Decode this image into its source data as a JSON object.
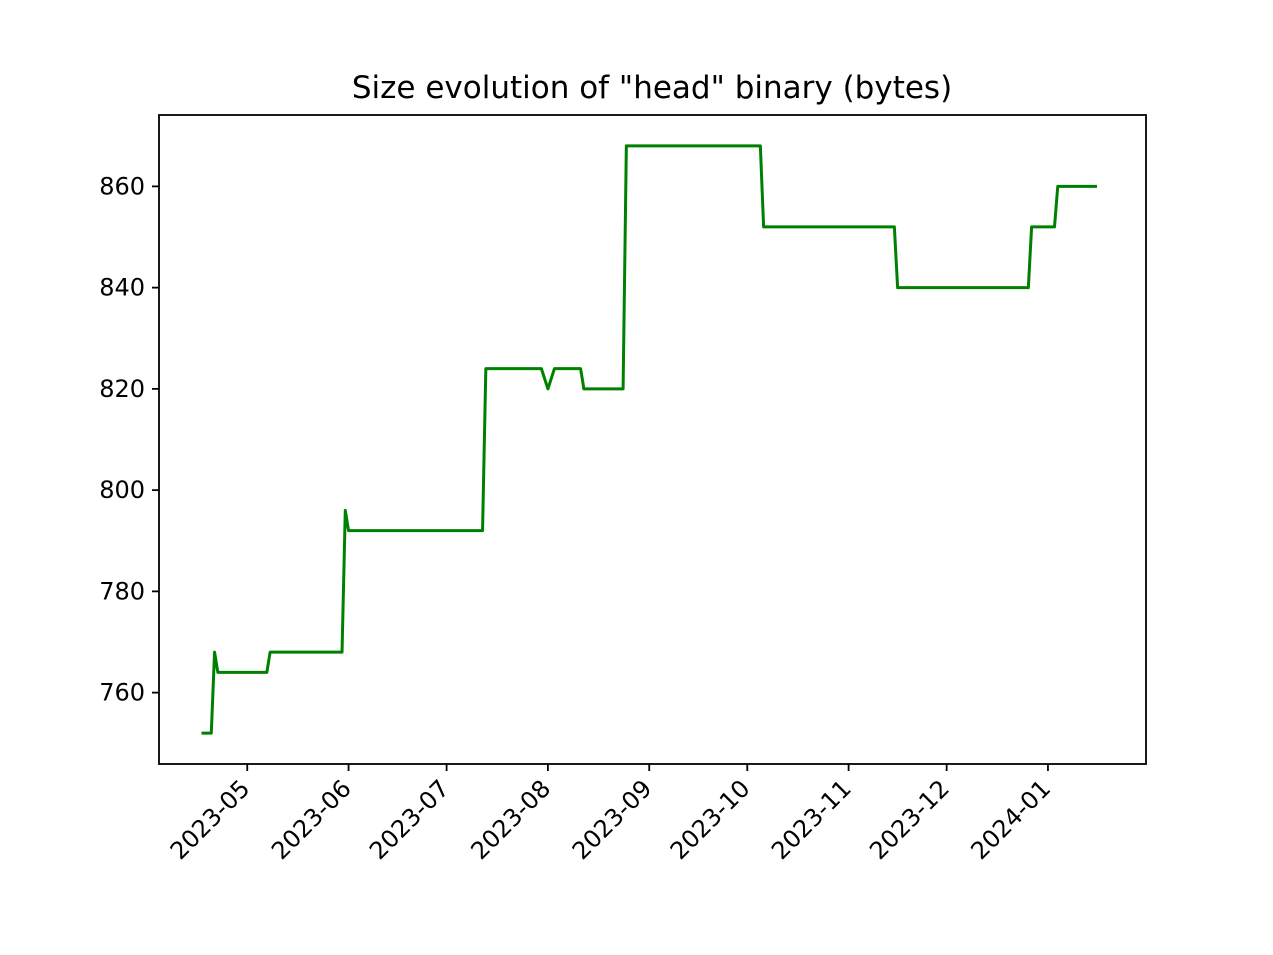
{
  "chart_data": {
    "type": "line",
    "title": "Size evolution of \"head\" binary (bytes)",
    "xlabel": "",
    "ylabel": "",
    "x_scale": "time",
    "xlim": [
      "2023-04-04",
      "2024-01-31"
    ],
    "ylim": [
      745.9,
      874.1
    ],
    "x_ticks": [
      {
        "date": "2023-05-01",
        "label": "2023-05"
      },
      {
        "date": "2023-06-01",
        "label": "2023-06"
      },
      {
        "date": "2023-07-01",
        "label": "2023-07"
      },
      {
        "date": "2023-08-01",
        "label": "2023-08"
      },
      {
        "date": "2023-09-01",
        "label": "2023-09"
      },
      {
        "date": "2023-10-01",
        "label": "2023-10"
      },
      {
        "date": "2023-11-01",
        "label": "2023-11"
      },
      {
        "date": "2023-12-01",
        "label": "2023-12"
      },
      {
        "date": "2024-01-01",
        "label": "2024-01"
      }
    ],
    "y_ticks": [
      760,
      780,
      800,
      820,
      840,
      860
    ],
    "grid": false,
    "legend": "none",
    "series": [
      {
        "color": "#008000",
        "points": [
          {
            "x": "2023-04-17",
            "y": 752
          },
          {
            "x": "2023-04-20",
            "y": 752
          },
          {
            "x": "2023-04-21",
            "y": 768
          },
          {
            "x": "2023-04-22",
            "y": 764
          },
          {
            "x": "2023-05-07",
            "y": 764
          },
          {
            "x": "2023-05-08",
            "y": 768
          },
          {
            "x": "2023-05-30",
            "y": 768
          },
          {
            "x": "2023-05-31",
            "y": 796
          },
          {
            "x": "2023-06-01",
            "y": 792
          },
          {
            "x": "2023-07-12",
            "y": 792
          },
          {
            "x": "2023-07-13",
            "y": 824
          },
          {
            "x": "2023-07-30",
            "y": 824
          },
          {
            "x": "2023-08-01",
            "y": 820
          },
          {
            "x": "2023-08-03",
            "y": 824
          },
          {
            "x": "2023-08-11",
            "y": 824
          },
          {
            "x": "2023-08-12",
            "y": 820
          },
          {
            "x": "2023-08-24",
            "y": 820
          },
          {
            "x": "2023-08-25",
            "y": 868
          },
          {
            "x": "2023-10-05",
            "y": 868
          },
          {
            "x": "2023-10-06",
            "y": 852
          },
          {
            "x": "2023-11-15",
            "y": 852
          },
          {
            "x": "2023-11-16",
            "y": 840
          },
          {
            "x": "2023-12-26",
            "y": 840
          },
          {
            "x": "2023-12-27",
            "y": 852
          },
          {
            "x": "2024-01-03",
            "y": 852
          },
          {
            "x": "2024-01-04",
            "y": 860
          },
          {
            "x": "2024-01-16",
            "y": 860
          }
        ]
      }
    ]
  }
}
